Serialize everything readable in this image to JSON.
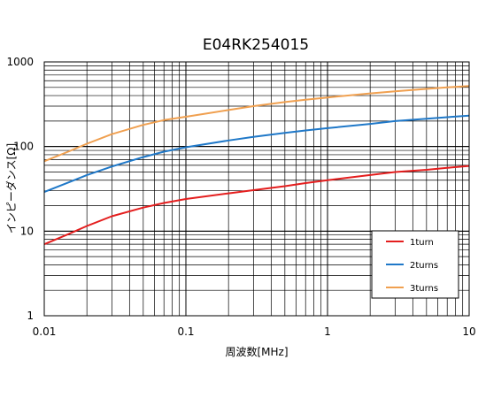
{
  "chart_data": {
    "type": "line",
    "title": "E04RK254015",
    "xlabel": "周波数[MHz]",
    "ylabel": "インピーダンス[Ω]",
    "x_scale": "log",
    "y_scale": "log",
    "xlim": [
      0.01,
      10
    ],
    "ylim": [
      1,
      1000
    ],
    "x_ticks": [
      "0.01",
      "0.1",
      "1",
      "10"
    ],
    "y_ticks": [
      "1",
      "10",
      "100",
      "1000"
    ],
    "grid": true,
    "legend_position": "lower-right",
    "colors": {
      "1turn": "#e41e1e",
      "2turns": "#1f78c8",
      "3turns": "#f0a050"
    },
    "series": [
      {
        "name": "1turn",
        "x": [
          0.01,
          0.015,
          0.02,
          0.03,
          0.05,
          0.07,
          0.1,
          0.2,
          0.3,
          0.5,
          0.7,
          1,
          2,
          3,
          5,
          7,
          10
        ],
        "y": [
          7,
          9.3,
          11.5,
          15,
          19,
          21.5,
          24,
          28,
          30.5,
          34,
          37,
          40,
          46,
          50,
          53,
          56,
          59
        ]
      },
      {
        "name": "2turns",
        "x": [
          0.01,
          0.015,
          0.02,
          0.03,
          0.05,
          0.07,
          0.1,
          0.2,
          0.3,
          0.5,
          0.7,
          1,
          2,
          3,
          5,
          7,
          10
        ],
        "y": [
          29,
          38,
          46,
          58,
          75,
          87,
          98,
          118,
          130,
          145,
          155,
          165,
          185,
          200,
          213,
          222,
          232
        ]
      },
      {
        "name": "3turns",
        "x": [
          0.01,
          0.015,
          0.02,
          0.03,
          0.05,
          0.07,
          0.1,
          0.2,
          0.3,
          0.5,
          0.7,
          1,
          2,
          3,
          5,
          7,
          10
        ],
        "y": [
          67,
          88,
          108,
          140,
          180,
          205,
          225,
          270,
          300,
          335,
          358,
          380,
          425,
          450,
          480,
          500,
          520
        ]
      }
    ]
  }
}
